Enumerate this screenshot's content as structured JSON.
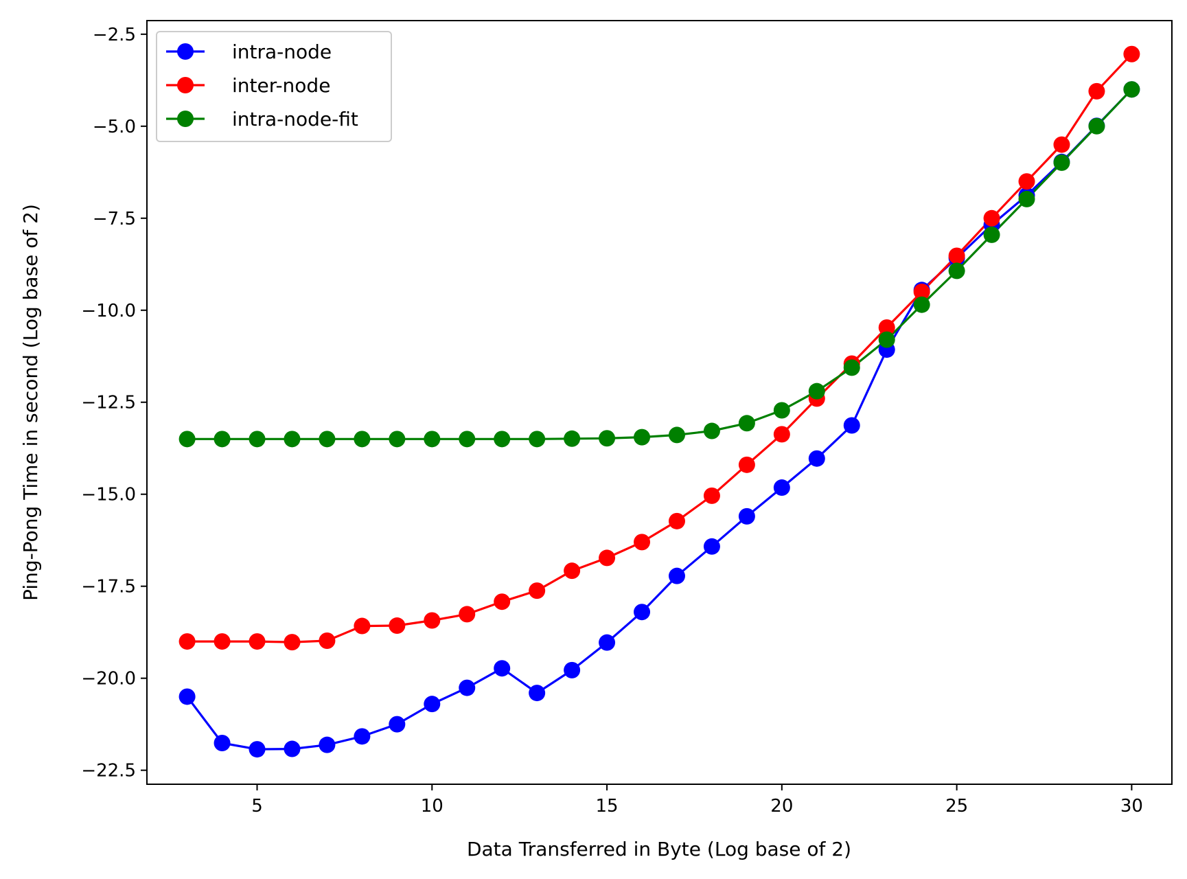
{
  "chart_data": {
    "type": "line",
    "title": "",
    "xlabel": "Data Transferred in Byte (Log base of 2)",
    "ylabel": "Ping-Pong Time in second (Log base of 2)",
    "xlim": [
      1.85,
      31.15
    ],
    "ylim": [
      -22.88,
      -2.13
    ],
    "xticks": [
      5,
      10,
      15,
      20,
      25,
      30
    ],
    "xtick_labels": [
      "5",
      "10",
      "15",
      "20",
      "25",
      "30"
    ],
    "yticks": [
      -2.5,
      -5.0,
      -7.5,
      -10.0,
      -12.5,
      -15.0,
      -17.5,
      -20.0,
      -22.5
    ],
    "ytick_labels": [
      "−2.5",
      "−5.0",
      "−7.5",
      "−10.0",
      "−12.5",
      "−15.0",
      "−17.5",
      "−20.0",
      "−22.5"
    ],
    "grid": false,
    "legend_position": "upper-left",
    "x": [
      3,
      4,
      5,
      6,
      7,
      8,
      9,
      10,
      11,
      12,
      13,
      14,
      15,
      16,
      17,
      18,
      19,
      20,
      21,
      22,
      23,
      24,
      25,
      26,
      27,
      28,
      29,
      30
    ],
    "series": [
      {
        "name": "intra-node",
        "color": "#0000ff",
        "values": [
          -20.5,
          -21.76,
          -21.93,
          -21.92,
          -21.81,
          -21.58,
          -21.25,
          -20.7,
          -20.26,
          -19.73,
          -20.4,
          -19.78,
          -19.03,
          -18.2,
          -17.22,
          -16.42,
          -15.6,
          -14.82,
          -14.03,
          -13.13,
          -11.07,
          -9.45,
          -8.58,
          -7.68,
          -6.88,
          -5.97,
          -4.99,
          -4.0
        ]
      },
      {
        "name": "inter-node",
        "color": "#ff0000",
        "values": [
          -19.0,
          -19.0,
          -19.0,
          -19.02,
          -18.98,
          -18.58,
          -18.57,
          -18.43,
          -18.26,
          -17.92,
          -17.62,
          -17.08,
          -16.73,
          -16.3,
          -15.73,
          -15.04,
          -14.2,
          -13.37,
          -12.4,
          -11.45,
          -10.47,
          -9.5,
          -8.52,
          -7.5,
          -6.5,
          -5.5,
          -4.05,
          -3.04
        ]
      },
      {
        "name": "intra-node-fit",
        "color": "#008000",
        "values": [
          -13.5,
          -13.5,
          -13.5,
          -13.5,
          -13.5,
          -13.5,
          -13.5,
          -13.5,
          -13.5,
          -13.5,
          -13.5,
          -13.49,
          -13.48,
          -13.45,
          -13.39,
          -13.28,
          -13.07,
          -12.72,
          -12.2,
          -11.56,
          -10.8,
          -9.85,
          -8.93,
          -7.95,
          -6.98,
          -5.99,
          -5.0,
          -4.0
        ]
      }
    ]
  }
}
